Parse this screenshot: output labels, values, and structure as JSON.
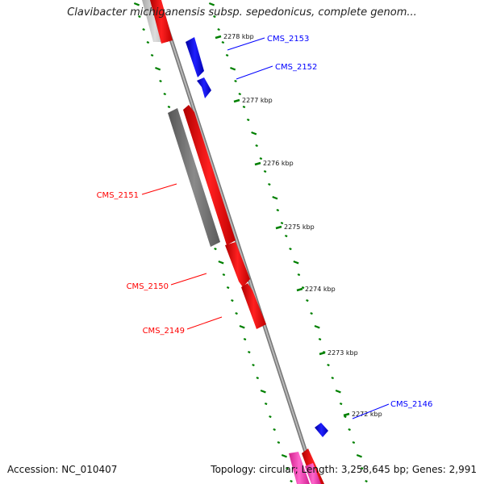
{
  "title": "Clavibacter michiganensis subsp. sepedonicus, complete genom...",
  "footer": {
    "accession_label": "Accession:",
    "accession": "NC_010407",
    "topology_label": "Topology:",
    "topology": "circular",
    "length_label": "Length:",
    "length": "3,258,645 bp",
    "genes_label": "Genes:",
    "genes": "2,991"
  },
  "colors": {
    "forward_gene": "#ff0000",
    "reverse_gene": "#0000ff",
    "pseudo_gene": "#808080",
    "gc_ticks": "#008000",
    "backbone": "#888888"
  },
  "scale_labels": [
    "2278 kbp",
    "2277 kbp",
    "2276 kbp",
    "2275 kbp",
    "2274 kbp",
    "2273 kbp",
    "2272 kbp"
  ],
  "gene_labels": [
    {
      "name": "CMS_2153",
      "strand": "reverse"
    },
    {
      "name": "CMS_2152",
      "strand": "reverse"
    },
    {
      "name": "CMS_2151",
      "strand": "forward"
    },
    {
      "name": "CMS_2150",
      "strand": "forward"
    },
    {
      "name": "CMS_2149",
      "strand": "forward"
    },
    {
      "name": "CMS_2146",
      "strand": "reverse"
    }
  ]
}
